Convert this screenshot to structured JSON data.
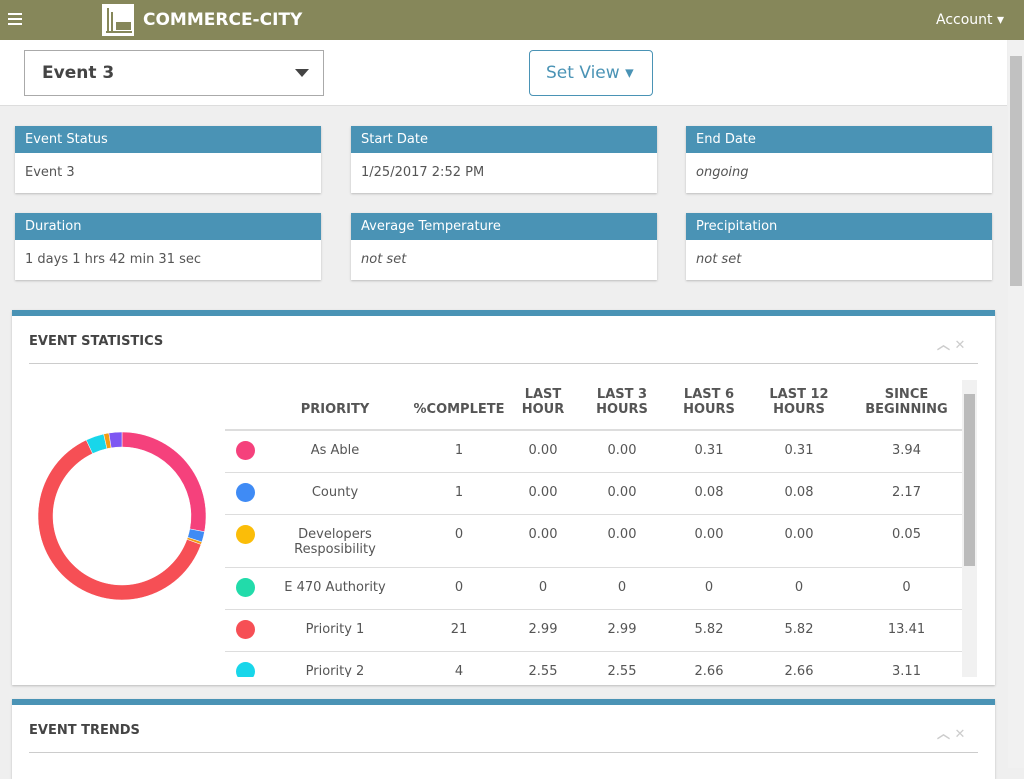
{
  "header": {
    "brand": "COMMERCE-CITY",
    "account": "Account"
  },
  "toolbar": {
    "event_select": "Event 3",
    "set_view": "Set View"
  },
  "cards": [
    {
      "label": "Event Status",
      "value": "Event 3"
    },
    {
      "label": "Start Date",
      "value": "1/25/2017 2:52 PM"
    },
    {
      "label": "End Date",
      "value": "ongoing",
      "italic": true
    },
    {
      "label": "Duration",
      "value": "1 days 1 hrs 42 min 31 sec"
    },
    {
      "label": "Average Temperature",
      "value": "not set",
      "italic": true
    },
    {
      "label": "Precipitation",
      "value": "not set",
      "italic": true
    }
  ],
  "event_statistics": {
    "title": "EVENT STATISTICS",
    "columns": [
      "PRIORITY",
      "%COMPLETE",
      "LAST HOUR",
      "LAST 3 HOURS",
      "LAST 6 HOURS",
      "LAST 12 HOURS",
      "SINCE BEGINNING"
    ],
    "rows": [
      {
        "color": "#f5417c",
        "cells": [
          "As Able",
          "1",
          "0.00",
          "0.00",
          "0.31",
          "0.31",
          "3.94"
        ]
      },
      {
        "color": "#3f8bf5",
        "cells": [
          "County",
          "1",
          "0.00",
          "0.00",
          "0.08",
          "0.08",
          "2.17"
        ]
      },
      {
        "color": "#fbbd08",
        "cells": [
          "Developers Resposibility",
          "0",
          "0.00",
          "0.00",
          "0.00",
          "0.00",
          "0.05"
        ]
      },
      {
        "color": "#22dbaa",
        "cells": [
          "E 470 Authority",
          "0",
          "0",
          "0",
          "0",
          "0",
          "0"
        ]
      },
      {
        "color": "#f64f55",
        "cells": [
          "Priority 1",
          "21",
          "2.99",
          "2.99",
          "5.82",
          "5.82",
          "13.41"
        ]
      },
      {
        "color": "#18d6ea",
        "cells": [
          "Priority 2",
          "4",
          "2.55",
          "2.55",
          "2.66",
          "2.66",
          "3.11"
        ]
      }
    ],
    "donut": [
      {
        "color": "#f5417c",
        "value": 28
      },
      {
        "color": "#3f8bf5",
        "value": 2
      },
      {
        "color": "#f39c12",
        "value": 0.5
      },
      {
        "color": "#f64f55",
        "value": 62.5
      },
      {
        "color": "#18d6ea",
        "value": 3.5
      },
      {
        "color": "#f39c12",
        "value": 1
      },
      {
        "color": "#7e57f2",
        "value": 2.5
      }
    ]
  },
  "event_trends": {
    "title": "EVENT TRENDS"
  }
}
